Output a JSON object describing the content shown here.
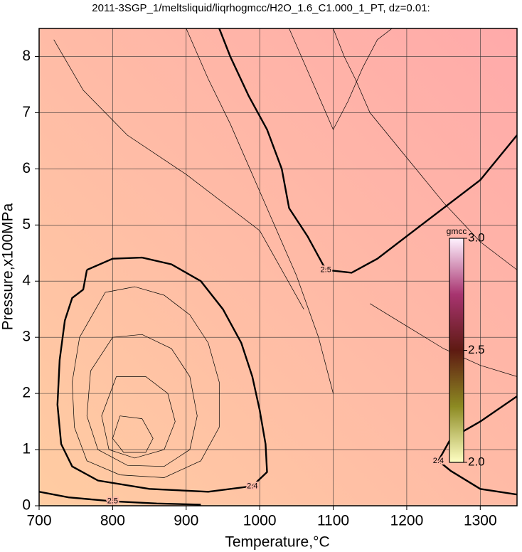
{
  "chart_data": {
    "type": "contour",
    "title": "2011-3SGP_1/meltsliquid/liqrhogmcc/H2O_1.6_C1.000_1_PT, dz=0.01:",
    "x_label": "Temperature,°C",
    "y_label": "Pressure,x100MPa",
    "xlim": [
      700,
      1350
    ],
    "ylim": [
      0,
      8.5
    ],
    "xticks": [
      700,
      800,
      900,
      1000,
      1100,
      1200,
      1300
    ],
    "yticks": [
      0,
      1,
      2,
      3,
      4,
      5,
      6,
      7,
      8
    ],
    "grid": true,
    "field_colors": [
      "#ffcca2",
      "#ffaaaa"
    ],
    "contours": [
      {
        "level": 2.5,
        "x": [
          945,
          960,
          985,
          1010,
          1030,
          1040,
          1065,
          1090,
          1125,
          1160,
          1200,
          1250,
          1300,
          1350
        ],
        "y": [
          8.5,
          8.0,
          7.3,
          6.7,
          6.0,
          5.3,
          4.8,
          4.2,
          4.15,
          4.4,
          4.8,
          5.3,
          5.8,
          6.6
        ]
      },
      {
        "level": 2.4,
        "x": [
          765,
          800,
          840,
          880,
          920,
          950,
          975,
          990,
          1000,
          1008,
          1010,
          990,
          930,
          850,
          780,
          745,
          730,
          725,
          728,
          735,
          745,
          760,
          765
        ],
        "y": [
          4.2,
          4.4,
          4.42,
          4.3,
          4.0,
          3.5,
          2.9,
          2.3,
          1.7,
          1.1,
          0.6,
          0.35,
          0.25,
          0.3,
          0.45,
          0.7,
          1.1,
          1.8,
          2.6,
          3.3,
          3.7,
          3.85,
          4.2
        ]
      },
      {
        "level": 2.4,
        "x": [
          1350,
          1300,
          1260,
          1243,
          1260,
          1300,
          1350
        ],
        "y": [
          1.95,
          1.5,
          1.2,
          0.8,
          0.62,
          0.3,
          0.2
        ]
      },
      {
        "level": 2.5,
        "x": [
          700,
          740,
          800,
          860,
          920
        ],
        "y": [
          0.25,
          0.15,
          0.08,
          0.04,
          0.02
        ]
      },
      {
        "x": [
          790,
          830,
          870,
          905,
          930,
          945,
          945,
          920,
          870,
          810,
          765,
          748,
          745,
          755,
          790
        ],
        "y": [
          3.8,
          3.9,
          3.75,
          3.4,
          2.9,
          2.2,
          1.4,
          0.8,
          0.5,
          0.55,
          0.8,
          1.4,
          2.2,
          3.0,
          3.8
        ]
      },
      {
        "x": [
          800,
          840,
          880,
          905,
          915,
          905,
          870,
          820,
          780,
          765,
          770,
          800
        ],
        "y": [
          3.0,
          3.05,
          2.8,
          2.3,
          1.6,
          1.0,
          0.7,
          0.72,
          1.0,
          1.6,
          2.4,
          3.0
        ]
      },
      {
        "x": [
          805,
          845,
          875,
          885,
          870,
          830,
          795,
          785,
          805
        ],
        "y": [
          2.3,
          2.3,
          2.0,
          1.5,
          1.0,
          0.85,
          1.0,
          1.6,
          2.3
        ]
      },
      {
        "x": [
          810,
          840,
          855,
          845,
          815,
          800,
          810
        ],
        "y": [
          1.6,
          1.55,
          1.2,
          0.95,
          0.95,
          1.2,
          1.6
        ]
      },
      {
        "x": [
          900,
          930,
          960,
          990,
          1020,
          1050,
          1080,
          1100
        ],
        "y": [
          8.5,
          7.6,
          6.8,
          5.9,
          5.0,
          4.1,
          3.0,
          2.0
        ]
      },
      {
        "x": [
          1040,
          1060,
          1080,
          1100,
          1120,
          1140,
          1160,
          1180
        ],
        "y": [
          8.5,
          7.9,
          7.3,
          6.7,
          7.2,
          7.8,
          8.3,
          8.5
        ]
      },
      {
        "x": [
          1100,
          1115,
          1130,
          1150,
          1200,
          1250,
          1300,
          1350
        ],
        "y": [
          8.5,
          8.0,
          7.6,
          7.0,
          6.2,
          5.4,
          4.7,
          4.2
        ]
      },
      {
        "x": [
          1150,
          1200,
          1250,
          1300,
          1350
        ],
        "y": [
          3.6,
          3.2,
          2.8,
          2.5,
          2.3
        ]
      },
      {
        "x": [
          720,
          760,
          820,
          900,
          1000,
          1060
        ],
        "y": [
          8.3,
          7.4,
          6.6,
          5.9,
          4.9,
          3.5
        ]
      }
    ],
    "colorbar": {
      "label": "gmcc",
      "lim": [
        2,
        3
      ],
      "ticks": [
        {
          "value": 2,
          "label": "2.0"
        },
        {
          "value": 2.5,
          "label": "2.5"
        },
        {
          "value": 3,
          "label": "3.0"
        }
      ],
      "colors": [
        "#ffffc4",
        "#8c8a22",
        "#5e1a12",
        "#a83470",
        "#fff2ff"
      ]
    }
  }
}
